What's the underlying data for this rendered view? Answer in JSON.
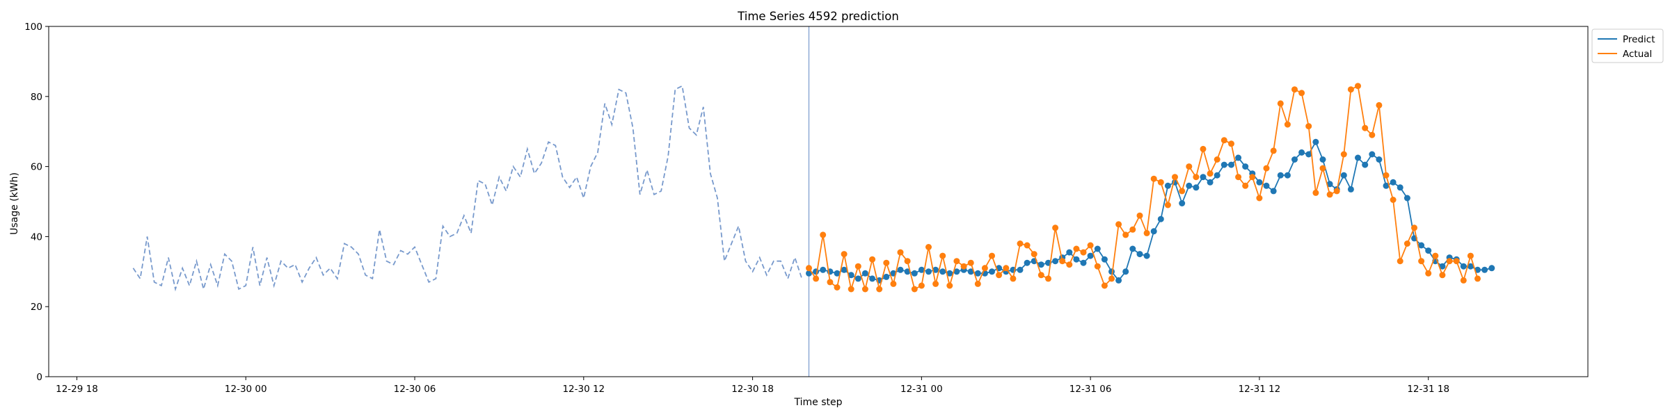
{
  "chart_data": {
    "type": "line",
    "title": "Time Series 4592 prediction",
    "xlabel": "Time step",
    "ylabel": "Usage (kWh)",
    "ylim": [
      0,
      100
    ],
    "yticks": [
      "0",
      "20",
      "40",
      "60",
      "80",
      "100"
    ],
    "xlim": [
      "2024-12-29T17:00",
      "2024-12-31T23:40"
    ],
    "xticks": [
      {
        "t": "2024-12-29T18:00",
        "label": "12-29 18"
      },
      {
        "t": "2024-12-30T00:00",
        "label": "12-30 00"
      },
      {
        "t": "2024-12-30T06:00",
        "label": "12-30 06"
      },
      {
        "t": "2024-12-30T12:00",
        "label": "12-30 12"
      },
      {
        "t": "2024-12-30T18:00",
        "label": "12-30 18"
      },
      {
        "t": "2024-12-31T00:00",
        "label": "12-31 00"
      },
      {
        "t": "2024-12-31T06:00",
        "label": "12-31 06"
      },
      {
        "t": "2024-12-31T12:00",
        "label": "12-31 12"
      },
      {
        "t": "2024-12-31T18:00",
        "label": "12-31 18"
      }
    ],
    "interval_minutes": 15,
    "history": {
      "start": "2024-12-29T20:00",
      "color": "#7799cc",
      "values": [
        31,
        28,
        40,
        27,
        26,
        34,
        25,
        31,
        26,
        33,
        25,
        32,
        26,
        35,
        33,
        25,
        26,
        37,
        26,
        34,
        26,
        33,
        31,
        32,
        27,
        31,
        34,
        29,
        31,
        28,
        38,
        37,
        35,
        29,
        28,
        42,
        33,
        32,
        36,
        35,
        37,
        32,
        27,
        28,
        43,
        40,
        41,
        46,
        41,
        56,
        55,
        49,
        57,
        53,
        60,
        57,
        65,
        58,
        61,
        67,
        66,
        57,
        54,
        57,
        51,
        60,
        64,
        78,
        72,
        82,
        81,
        71,
        52,
        59,
        52,
        53,
        63,
        82,
        83,
        71,
        69,
        77,
        58,
        51,
        33,
        38,
        43,
        33,
        30,
        34,
        29,
        33,
        33,
        28,
        34,
        28
      ]
    },
    "forecast_start_marker": "2024-12-30T20:00",
    "forecast_start": "2024-12-30T20:00",
    "series": [
      {
        "name": "Predict",
        "color": "#1f77b4",
        "values": [
          29.5,
          30,
          30.5,
          30,
          29.5,
          30.5,
          29,
          28,
          29.5,
          28,
          27.5,
          28.5,
          29.5,
          30.5,
          30,
          29.5,
          30.5,
          30,
          30.5,
          30,
          29.5,
          30,
          30.5,
          30,
          29.5,
          29.5,
          30,
          31,
          30,
          30.5,
          30.5,
          32.5,
          33,
          32,
          32.5,
          33,
          34,
          35.5,
          33.5,
          32.5,
          34.5,
          36.5,
          33.5,
          30,
          27.5,
          30,
          36.5,
          35,
          34.5,
          41.5,
          45,
          54.5,
          55.5,
          49.5,
          54.5,
          54,
          57,
          55.5,
          57.5,
          60.5,
          60.5,
          62.5,
          60,
          58,
          55.5,
          54.5,
          53,
          57.5,
          57.5,
          62,
          64,
          63.5,
          67,
          62,
          55,
          53.5,
          57.5,
          53.5,
          62.5,
          60.5,
          63.5,
          62,
          54.5,
          55.5,
          54,
          51,
          39.5,
          37.5,
          36,
          33,
          31.5,
          34,
          33.5,
          31.5,
          31.5,
          30.5,
          30.5,
          31
        ]
      },
      {
        "name": "Actual",
        "color": "#ff7f0e",
        "values": [
          31,
          28,
          40.5,
          27,
          25.5,
          35,
          25,
          31.5,
          25,
          33.5,
          25,
          32.5,
          26.5,
          35.5,
          33,
          25,
          26,
          37,
          26.5,
          34.5,
          26,
          33,
          31.5,
          32.5,
          26.5,
          31,
          34.5,
          29,
          31,
          28,
          38,
          37.5,
          35,
          29,
          28,
          42.5,
          33,
          32,
          36.5,
          35.5,
          37.5,
          31.5,
          26,
          28,
          43.5,
          40.5,
          42,
          46,
          41,
          56.5,
          55.5,
          49,
          57,
          53,
          60,
          57,
          65,
          58,
          62,
          67.5,
          66.5,
          57,
          54.5,
          57,
          51,
          59.5,
          64.5,
          78,
          72,
          82,
          81,
          71.5,
          52.5,
          59.5,
          52,
          53,
          63.5,
          82,
          83,
          71,
          69,
          77.5,
          57.5,
          50.5,
          33,
          38,
          42.5,
          33,
          29.5,
          34.5,
          29,
          33,
          33,
          27.5,
          34.5,
          28
        ]
      }
    ],
    "legend": {
      "position": "outside-right-top",
      "entries": [
        "Predict",
        "Actual"
      ]
    },
    "grid": false
  }
}
